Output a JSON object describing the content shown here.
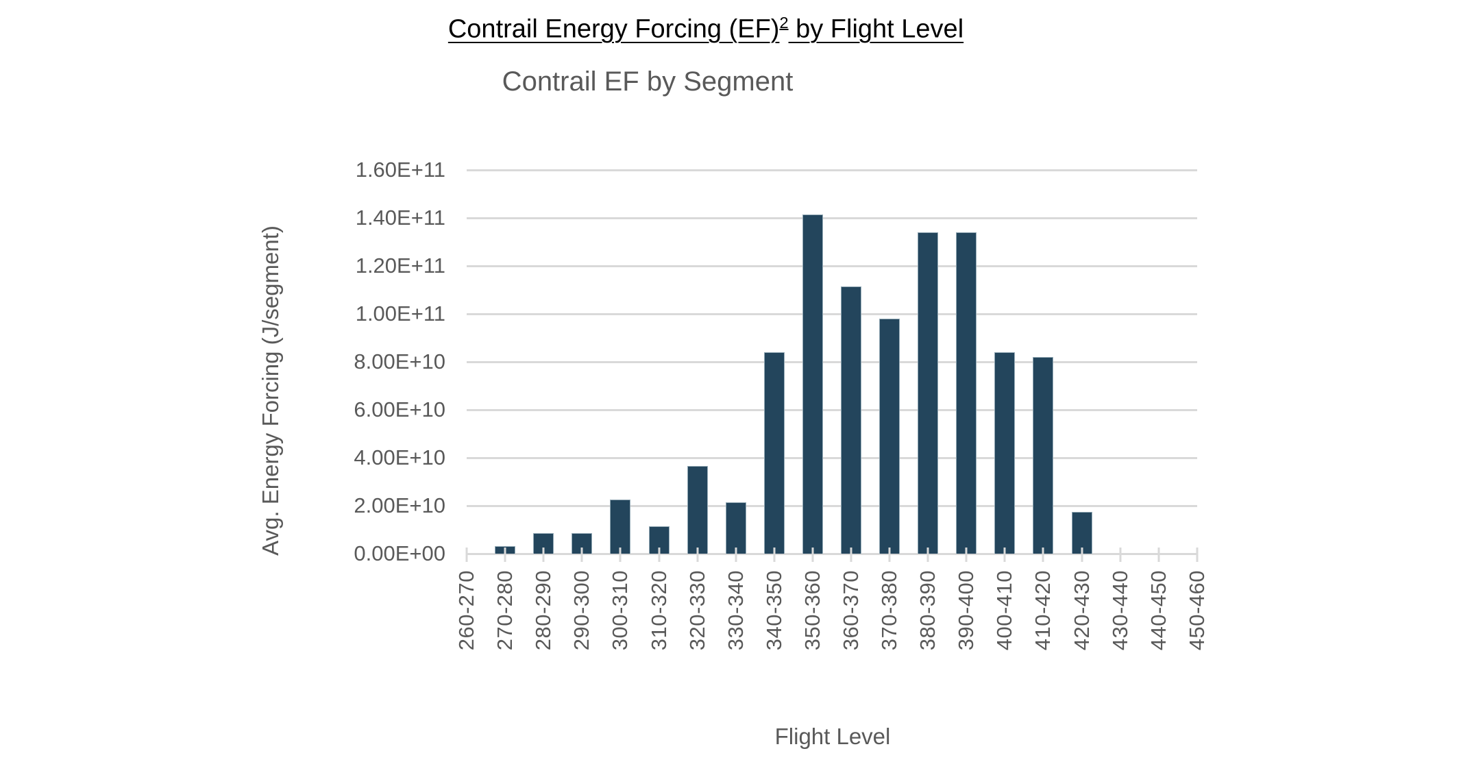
{
  "page": {
    "title_main": "Contrail Energy Forcing (EF)",
    "title_sup": "2",
    "title_rest": " by Flight Level"
  },
  "chart": {
    "title": "Contrail EF by Segment",
    "y_axis_title": "Avg. Energy Forcing (J/segment)",
    "x_axis_title": "Flight Level"
  },
  "chart_data": {
    "type": "bar",
    "title": "Contrail EF by Segment",
    "xlabel": "Flight Level",
    "ylabel": "Avg. Energy Forcing (J/segment)",
    "categories": [
      "260-270",
      "270-280",
      "280-290",
      "290-300",
      "300-310",
      "310-320",
      "320-330",
      "330-340",
      "340-350",
      "350-360",
      "360-370",
      "370-380",
      "380-390",
      "390-400",
      "400-410",
      "410-420",
      "420-430",
      "430-440",
      "440-450",
      "450-460"
    ],
    "values": [
      0,
      3000000000.0,
      8500000000.0,
      8500000000.0,
      22500000000.0,
      11500000000.0,
      36500000000.0,
      21500000000.0,
      84000000000.0,
      141500000000.0,
      111500000000.0,
      98000000000.0,
      134000000000.0,
      134000000000.0,
      84000000000.0,
      82000000000.0,
      17500000000.0,
      0,
      0,
      0
    ],
    "y_tick_labels": [
      "0.00E+00",
      "2.00E+10",
      "4.00E+10",
      "6.00E+10",
      "8.00E+10",
      "1.00E+11",
      "1.20E+11",
      "1.40E+11",
      "1.60E+11"
    ],
    "ylim": [
      0,
      160000000000.0
    ],
    "grid": true,
    "legend": "none",
    "bar_color": "#23455c",
    "gridline_color": "#d9d9d9",
    "text_color": "#595959",
    "title_color": "#595959"
  }
}
